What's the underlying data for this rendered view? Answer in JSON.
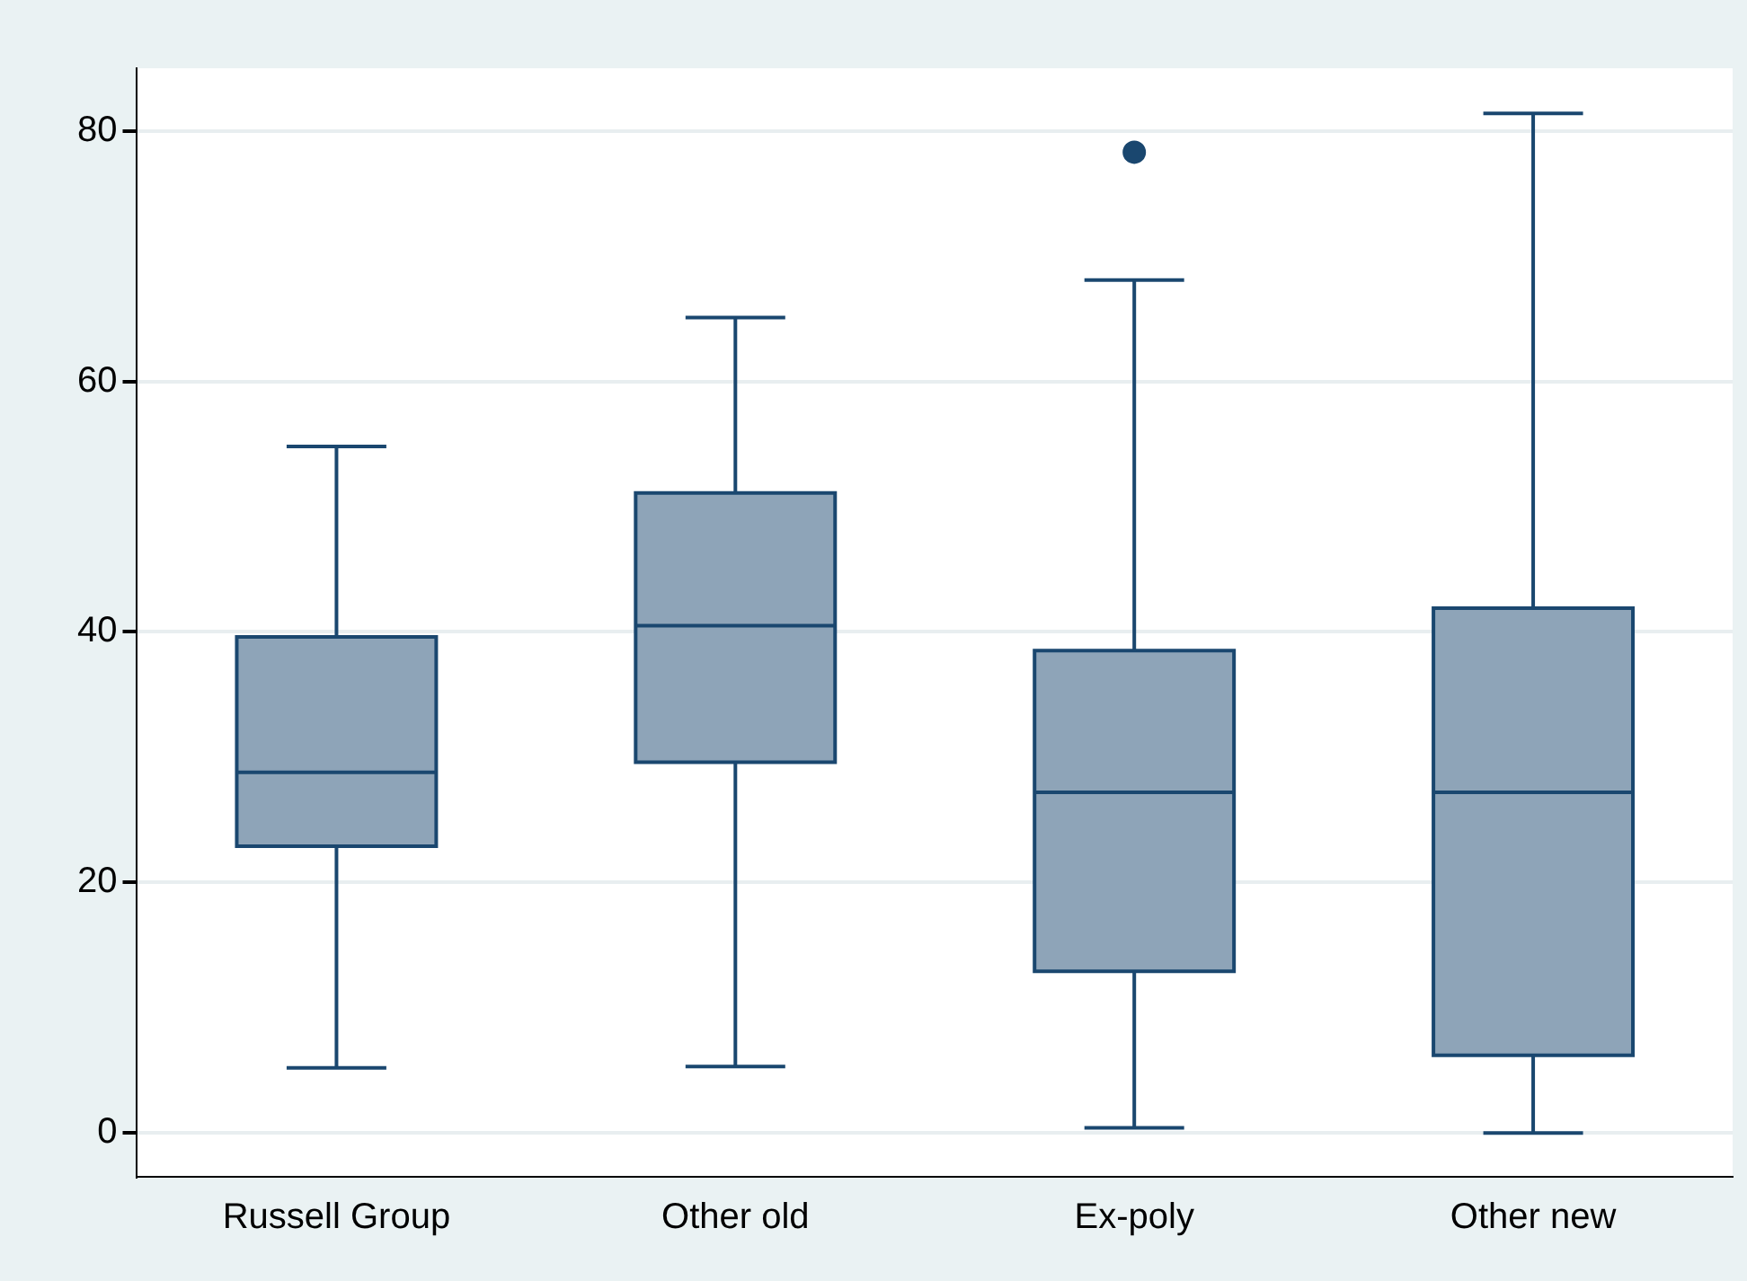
{
  "chart_data": {
    "type": "box",
    "categories": [
      "Russell Group",
      "Other old",
      "Ex-poly",
      "Other new"
    ],
    "color": "#8ea4b8",
    "boxes": [
      {
        "low": 5.2,
        "q1": 22.9,
        "median": 28.8,
        "q3": 39.6,
        "high": 54.8
      },
      {
        "low": 5.3,
        "q1": 29.6,
        "median": 40.5,
        "q3": 51.1,
        "high": 65.1
      },
      {
        "low": 0.4,
        "q1": 12.9,
        "median": 27.2,
        "q3": 38.5,
        "high": 68.1,
        "outliers": [
          78.3
        ]
      },
      {
        "low": 0,
        "q1": 6.2,
        "median": 27.2,
        "q3": 41.9,
        "high": 81.4
      }
    ],
    "ylim": [
      -3.5,
      85
    ],
    "yticks": [
      0,
      20,
      40,
      60,
      80
    ],
    "grid": "y",
    "legend": false
  }
}
